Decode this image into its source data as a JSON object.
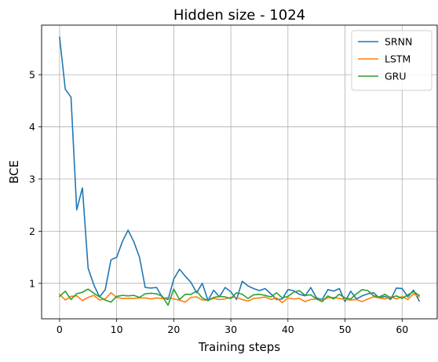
{
  "chart_data": {
    "type": "line",
    "title": "Hidden size - 1024",
    "xlabel": "Training steps",
    "ylabel": "BCE",
    "xlim": [
      -3.15,
      66.15
    ],
    "ylim": [
      0.32,
      5.95
    ],
    "xticks": [
      0,
      10,
      20,
      30,
      40,
      50,
      60
    ],
    "yticks": [
      1,
      2,
      3,
      4,
      5
    ],
    "grid": true,
    "legend_position": "top-right",
    "x": [
      0,
      1,
      2,
      3,
      4,
      5,
      6,
      7,
      8,
      9,
      10,
      11,
      12,
      13,
      14,
      15,
      16,
      17,
      18,
      19,
      20,
      21,
      22,
      23,
      24,
      25,
      26,
      27,
      28,
      29,
      30,
      31,
      32,
      33,
      34,
      35,
      36,
      37,
      38,
      39,
      40,
      41,
      42,
      43,
      44,
      45,
      46,
      47,
      48,
      49,
      50,
      51,
      52,
      53,
      54,
      55,
      56,
      57,
      58,
      59,
      60,
      61,
      62,
      63
    ],
    "series": [
      {
        "name": "SRNN",
        "color": "#1f77b4",
        "values": [
          5.72,
          4.72,
          4.57,
          2.41,
          2.83,
          1.29,
          0.97,
          0.74,
          0.88,
          1.45,
          1.5,
          1.8,
          2.02,
          1.8,
          1.5,
          0.92,
          0.91,
          0.92,
          0.73,
          0.69,
          1.08,
          1.27,
          1.14,
          1.02,
          0.82,
          1.0,
          0.67,
          0.87,
          0.74,
          0.92,
          0.84,
          0.69,
          1.04,
          0.95,
          0.9,
          0.86,
          0.9,
          0.8,
          0.69,
          0.7,
          0.88,
          0.86,
          0.79,
          0.76,
          0.92,
          0.72,
          0.69,
          0.88,
          0.85,
          0.9,
          0.65,
          0.85,
          0.7,
          0.76,
          0.8,
          0.82,
          0.72,
          0.75,
          0.69,
          0.91,
          0.9,
          0.74,
          0.87,
          0.66
        ]
      },
      {
        "name": "LSTM",
        "color": "#ff7f0e",
        "values": [
          0.79,
          0.68,
          0.75,
          0.76,
          0.67,
          0.73,
          0.77,
          0.68,
          0.7,
          0.82,
          0.73,
          0.71,
          0.71,
          0.71,
          0.72,
          0.72,
          0.7,
          0.72,
          0.71,
          0.73,
          0.7,
          0.68,
          0.64,
          0.73,
          0.74,
          0.68,
          0.68,
          0.71,
          0.69,
          0.7,
          0.73,
          0.73,
          0.69,
          0.66,
          0.71,
          0.72,
          0.74,
          0.69,
          0.72,
          0.63,
          0.72,
          0.7,
          0.71,
          0.65,
          0.69,
          0.7,
          0.68,
          0.72,
          0.73,
          0.71,
          0.69,
          0.68,
          0.69,
          0.65,
          0.7,
          0.74,
          0.72,
          0.7,
          0.74,
          0.7,
          0.75,
          0.69,
          0.8,
          0.74
        ]
      },
      {
        "name": "GRU",
        "color": "#2ca02c",
        "values": [
          0.75,
          0.85,
          0.69,
          0.8,
          0.83,
          0.89,
          0.81,
          0.74,
          0.68,
          0.64,
          0.75,
          0.77,
          0.76,
          0.77,
          0.73,
          0.8,
          0.81,
          0.8,
          0.75,
          0.58,
          0.89,
          0.69,
          0.79,
          0.79,
          0.85,
          0.72,
          0.67,
          0.73,
          0.75,
          0.74,
          0.71,
          0.82,
          0.79,
          0.71,
          0.78,
          0.79,
          0.77,
          0.74,
          0.82,
          0.72,
          0.75,
          0.83,
          0.86,
          0.77,
          0.78,
          0.7,
          0.65,
          0.76,
          0.7,
          0.79,
          0.72,
          0.7,
          0.8,
          0.88,
          0.86,
          0.76,
          0.74,
          0.79,
          0.72,
          0.76,
          0.71,
          0.78,
          0.84,
          0.77
        ]
      }
    ]
  }
}
